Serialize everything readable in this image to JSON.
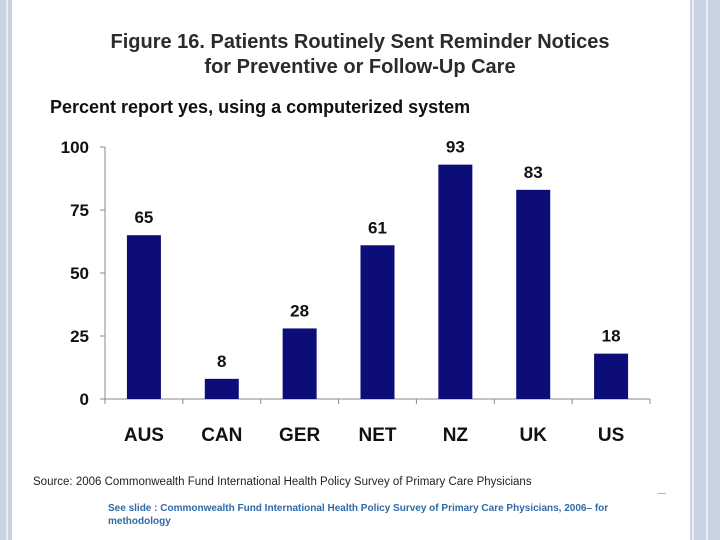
{
  "figure": {
    "title_line1": "Figure 16. Patients Routinely Sent Reminder Notices",
    "title_line2": "for Preventive or Follow-Up Care",
    "subtitle": "Percent report yes, using a computerized system"
  },
  "chart_data": {
    "type": "bar",
    "title": "Figure 16. Patients Routinely Sent Reminder Notices for Preventive or Follow-Up Care",
    "subtitle": "Percent report yes, using a computerized system",
    "categories": [
      "AUS",
      "CAN",
      "GER",
      "NET",
      "NZ",
      "UK",
      "US"
    ],
    "values": [
      65,
      8,
      28,
      61,
      93,
      83,
      18
    ],
    "ylim": [
      0,
      100
    ],
    "yticks": [
      0,
      25,
      50,
      75,
      100
    ],
    "xlabel": "",
    "ylabel": "",
    "grid": false,
    "legend": "none",
    "bar_color": "#0d0d7a"
  },
  "source": "Source: 2006 Commonwealth Fund International Health Policy Survey of Primary Care Physicians",
  "footnote": "See slide : Commonwealth Fund International Health Policy Survey of Primary Care Physicians, 2006– for methodology"
}
